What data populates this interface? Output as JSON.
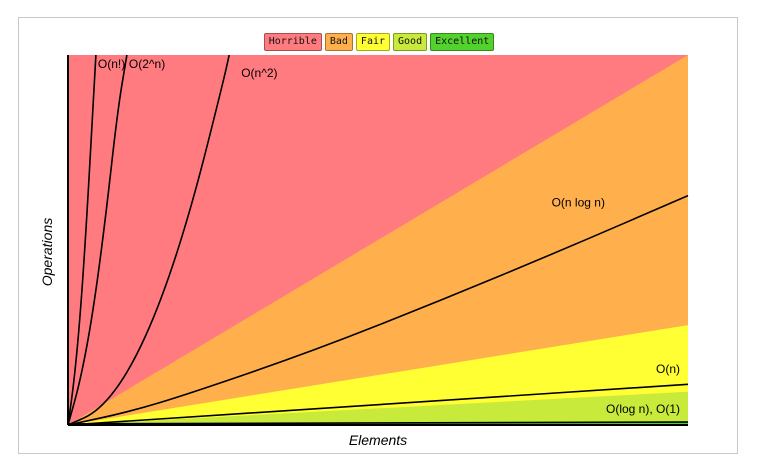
{
  "legend": [
    {
      "label": "Horrible",
      "color": "#ff7b7f"
    },
    {
      "label": "Bad",
      "color": "#ffb04d"
    },
    {
      "label": "Fair",
      "color": "#ffff33"
    },
    {
      "label": "Good",
      "color": "#c8ea3a"
    },
    {
      "label": "Excellent",
      "color": "#53d12c"
    }
  ],
  "chart_data": {
    "type": "line",
    "title": "",
    "xlabel": "Elements",
    "ylabel": "Operations",
    "xlim": [
      0,
      100
    ],
    "ylim": [
      0,
      100
    ],
    "grid": false,
    "legend_position": "top-center",
    "regions": [
      {
        "name": "Horrible",
        "color": "#ff7b7f",
        "upper_slope": null
      },
      {
        "name": "Bad",
        "color": "#ffb04d",
        "upper_slope": 1.0
      },
      {
        "name": "Fair",
        "color": "#ffff33",
        "upper_slope": 0.27
      },
      {
        "name": "Good",
        "color": "#c8ea3a",
        "upper_slope": 0.09
      },
      {
        "name": "Excellent",
        "color": "#53d12c",
        "upper_slope": 0.01
      }
    ],
    "series": [
      {
        "name": "O(n!)",
        "x": [
          0,
          1,
          2,
          3,
          4,
          4.5
        ],
        "y": [
          0,
          12,
          30,
          55,
          85,
          100
        ]
      },
      {
        "name": "O(2^n)",
        "x": [
          0,
          2,
          4,
          6,
          8,
          9.5
        ],
        "y": [
          0,
          12,
          30,
          55,
          85,
          100
        ]
      },
      {
        "name": "O(n^2)",
        "x": [
          0,
          5,
          10,
          15,
          20,
          25,
          26
        ],
        "y": [
          0,
          3.7,
          14.8,
          33.3,
          59.2,
          92.5,
          100
        ]
      },
      {
        "name": "O(n log n)",
        "x": [
          0,
          10,
          20,
          40,
          60,
          80,
          100
        ],
        "y": [
          0,
          3.6,
          8.7,
          20.3,
          33.6,
          47.5,
          62
        ]
      },
      {
        "name": "O(n)",
        "x": [
          0,
          100
        ],
        "y": [
          0,
          11
        ]
      },
      {
        "name": "O(log n), O(1)",
        "x": [
          0,
          100
        ],
        "y": [
          0.3,
          0.8
        ]
      }
    ]
  }
}
